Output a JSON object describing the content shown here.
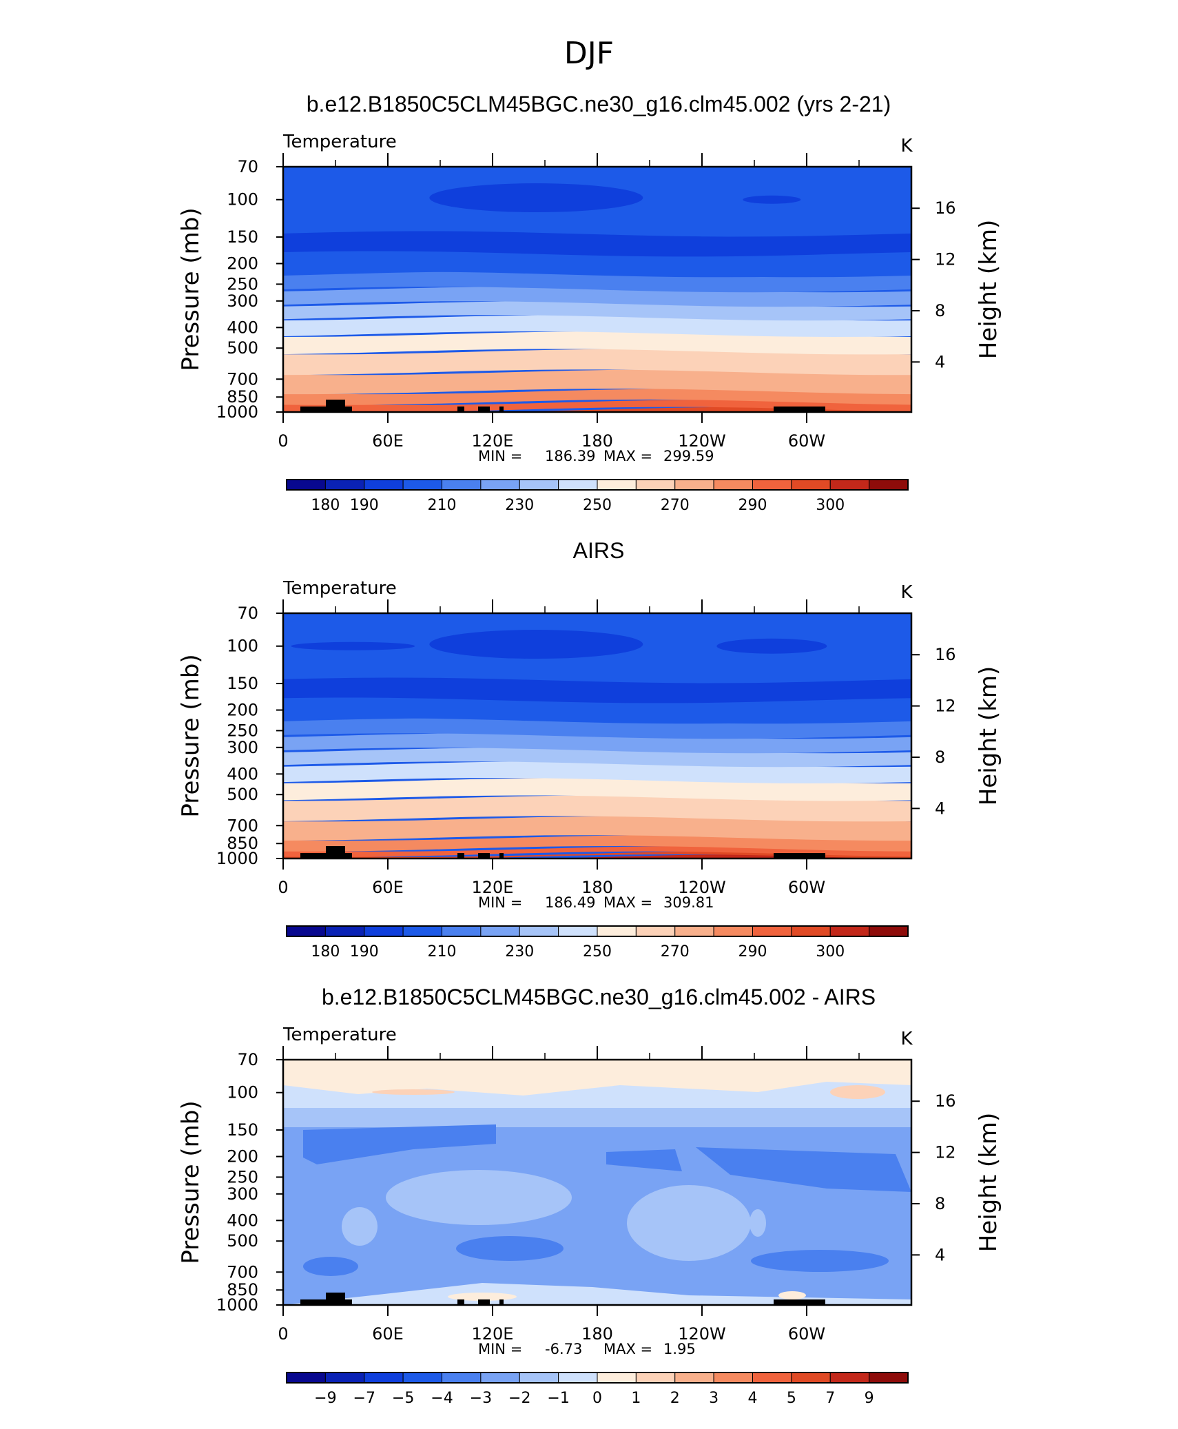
{
  "figure_title": "DJF",
  "colors": {
    "temperature_palette": [
      "#08088f",
      "#0a22b5",
      "#0f3fdc",
      "#1d5ae8",
      "#4a80ef",
      "#79a3f4",
      "#a6c4f8",
      "#cfe1fc",
      "#fdeddc",
      "#fcd2b8",
      "#f8b08c",
      "#f58a60",
      "#f0633d",
      "#e04a25",
      "#c3281a",
      "#8e0c0a"
    ],
    "difference_palette": [
      "#08088f",
      "#0a22b5",
      "#0f3fdc",
      "#1d5ae8",
      "#4a80ef",
      "#79a3f4",
      "#a6c4f8",
      "#cfe1fc",
      "#fdeddc",
      "#fcd2b8",
      "#f8b08c",
      "#f58a60",
      "#f0633d",
      "#e04a25",
      "#c3281a",
      "#8e0c0a"
    ],
    "land_mask": "#000000"
  },
  "panels": [
    {
      "title": "b.e12.B1850C5CLM45BGC.ne30_g16.clm45.002 (yrs 2-21)",
      "variable": "Temperature",
      "units": "K",
      "ylabel": "Pressure (mb)",
      "ylabel_right": "Height (km)",
      "yticks": [
        "70",
        "100",
        "150",
        "200",
        "250",
        "300",
        "400",
        "500",
        "700",
        "850",
        "1000"
      ],
      "yticks_right": [
        "16",
        "12",
        "8",
        "4"
      ],
      "xticks": [
        "0",
        "60E",
        "120E",
        "180",
        "120W",
        "60W"
      ],
      "stats": {
        "min_label": "MIN =",
        "min": "186.39",
        "max_label": "MAX =",
        "max": "299.59"
      },
      "colorbar_labels": [
        "180",
        "190",
        "210",
        "230",
        "250",
        "270",
        "290",
        "300"
      ]
    },
    {
      "title": "AIRS",
      "variable": "Temperature",
      "units": "K",
      "ylabel": "Pressure (mb)",
      "ylabel_right": "Height (km)",
      "yticks": [
        "70",
        "100",
        "150",
        "200",
        "250",
        "300",
        "400",
        "500",
        "700",
        "850",
        "1000"
      ],
      "yticks_right": [
        "16",
        "12",
        "8",
        "4"
      ],
      "xticks": [
        "0",
        "60E",
        "120E",
        "180",
        "120W",
        "60W"
      ],
      "stats": {
        "min_label": "MIN =",
        "min": "186.49",
        "max_label": "MAX =",
        "max": "309.81"
      },
      "colorbar_labels": [
        "180",
        "190",
        "210",
        "230",
        "250",
        "270",
        "290",
        "300"
      ]
    },
    {
      "title": "b.e12.B1850C5CLM45BGC.ne30_g16.clm45.002 - AIRS",
      "variable": "Temperature",
      "units": "K",
      "ylabel": "Pressure (mb)",
      "ylabel_right": "Height (km)",
      "yticks": [
        "70",
        "100",
        "150",
        "200",
        "250",
        "300",
        "400",
        "500",
        "700",
        "850",
        "1000"
      ],
      "yticks_right": [
        "16",
        "12",
        "8",
        "4"
      ],
      "xticks": [
        "0",
        "60E",
        "120E",
        "180",
        "120W",
        "60W"
      ],
      "stats": {
        "min_label": "MIN =",
        "min": "-6.73",
        "max_label": "MAX =",
        "max": "1.95"
      },
      "colorbar_labels": [
        "−9",
        "−7",
        "−5",
        "−4",
        "−3",
        "−2",
        "−1",
        "0",
        "1",
        "2",
        "3",
        "4",
        "5",
        "7",
        "9"
      ]
    }
  ],
  "chart_data": [
    {
      "type": "heatmap",
      "title": "b.e12.B1850C5CLM45BGC.ne30_g16.clm45.002 (yrs 2-21)",
      "xlabel": "",
      "ylabel": "Pressure (mb)",
      "x_range": [
        0,
        360
      ],
      "y_range_mb": [
        1000,
        70
      ],
      "y_scale": "log",
      "levels_mb": [
        1000,
        850,
        700,
        500,
        400,
        300,
        250,
        200,
        150,
        100,
        70
      ],
      "band_color_index": [
        13,
        12,
        11,
        10,
        9,
        8,
        7,
        6,
        5,
        4,
        3,
        2
      ],
      "value_min": 186.39,
      "value_max": 299.59,
      "units": "K",
      "colorbar_levels": [
        180,
        190,
        210,
        230,
        250,
        270,
        290,
        300
      ]
    },
    {
      "type": "heatmap",
      "title": "AIRS",
      "xlabel": "",
      "ylabel": "Pressure (mb)",
      "x_range": [
        0,
        360
      ],
      "y_range_mb": [
        1000,
        70
      ],
      "y_scale": "log",
      "levels_mb": [
        1000,
        850,
        700,
        500,
        400,
        300,
        250,
        200,
        150,
        100,
        70
      ],
      "band_color_index": [
        14,
        13,
        12,
        11,
        10,
        9,
        8,
        7,
        6,
        5,
        4,
        3,
        2
      ],
      "value_min": 186.49,
      "value_max": 309.81,
      "units": "K",
      "colorbar_levels": [
        180,
        190,
        210,
        230,
        250,
        270,
        290,
        300
      ]
    },
    {
      "type": "heatmap",
      "title": "b.e12.B1850C5CLM45BGC.ne30_g16.clm45.002 - AIRS",
      "xlabel": "",
      "ylabel": "Pressure (mb)",
      "x_range": [
        0,
        360
      ],
      "y_range_mb": [
        1000,
        70
      ],
      "y_scale": "log",
      "value_min": -6.73,
      "value_max": 1.95,
      "units": "K",
      "colorbar_levels": [
        -9,
        -7,
        -5,
        -4,
        -3,
        -2,
        -1,
        0,
        1,
        2,
        3,
        4,
        5,
        7,
        9
      ]
    }
  ]
}
